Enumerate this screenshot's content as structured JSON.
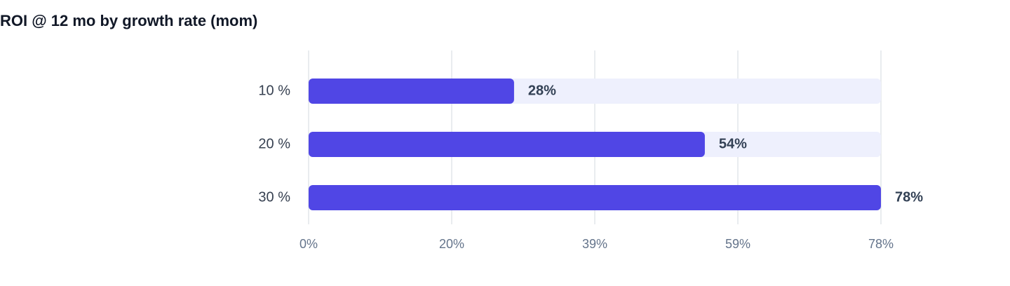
{
  "chart_data": {
    "type": "bar",
    "orientation": "horizontal",
    "title": "ROI @ 12 mo by growth rate (mom)",
    "categories": [
      "10 %",
      "20 %",
      "30 %"
    ],
    "values": [
      28,
      54,
      78
    ],
    "value_labels": [
      "28%",
      "54%",
      "78%"
    ],
    "color": "#5046e5",
    "track_color": "#eef0fd",
    "xlim": [
      0,
      78
    ],
    "xticks": [
      {
        "value": 0,
        "label": "0%"
      },
      {
        "value": 19.5,
        "label": "20%"
      },
      {
        "value": 39,
        "label": "39%"
      },
      {
        "value": 58.5,
        "label": "59%"
      },
      {
        "value": 78,
        "label": "78%"
      }
    ],
    "grid": true
  }
}
